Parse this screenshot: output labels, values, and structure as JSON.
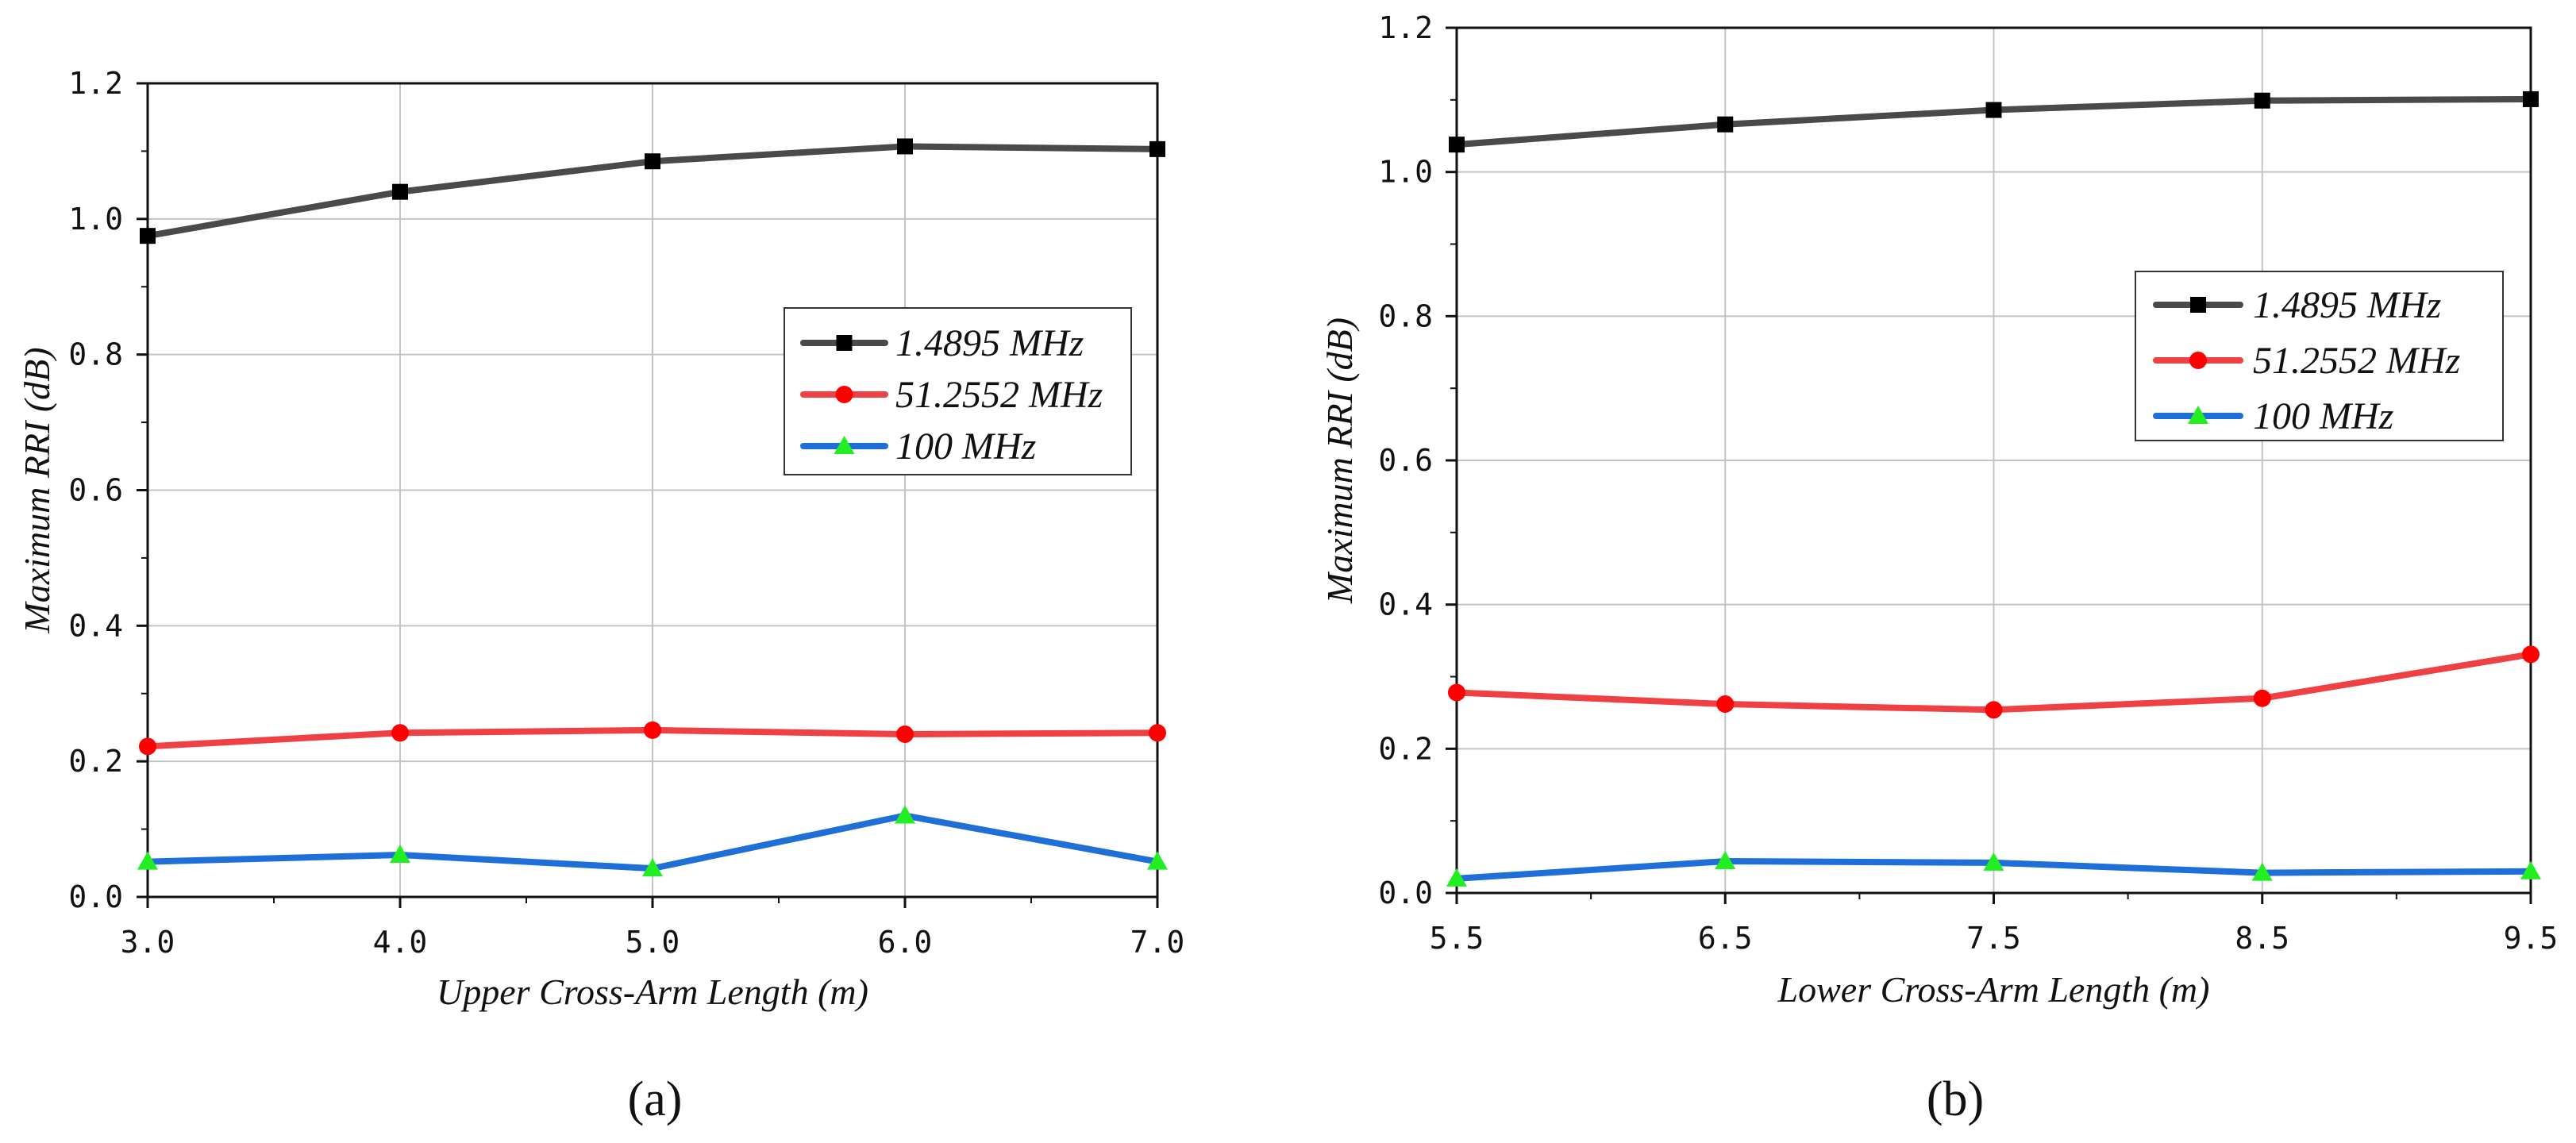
{
  "chart_data": [
    {
      "type": "line",
      "panel_label": "(a)",
      "title": "",
      "xlabel": "Upper Cross-Arm Length (m)",
      "ylabel": "Maximum RRI (dB)",
      "xlim": [
        3.0,
        7.0
      ],
      "ylim": [
        0.0,
        1.2
      ],
      "xticks": [
        3.0,
        4.0,
        5.0,
        6.0,
        7.0
      ],
      "xtick_labels": [
        "3.0",
        "4.0",
        "5.0",
        "6.0",
        "7.0"
      ],
      "yticks": [
        0.0,
        0.2,
        0.4,
        0.6,
        0.8,
        1.0,
        1.2
      ],
      "ytick_labels": [
        "0.0",
        "0.2",
        "0.4",
        "0.6",
        "0.8",
        "1.0",
        "1.2"
      ],
      "grid": true,
      "legend_position": "center-right",
      "x": [
        3.0,
        4.0,
        5.0,
        6.0,
        7.0
      ],
      "series": [
        {
          "name": "1.4895 MHz",
          "values": [
            0.975,
            1.04,
            1.085,
            1.107,
            1.103
          ],
          "color": "#4a4a4a",
          "marker": "square",
          "marker_color": "#000000"
        },
        {
          "name": "51.2552 MHz",
          "values": [
            0.222,
            0.242,
            0.246,
            0.24,
            0.242
          ],
          "color": "#ef4043",
          "marker": "circle",
          "marker_color": "#ff0000"
        },
        {
          "name": "100 MHz",
          "values": [
            0.052,
            0.062,
            0.042,
            0.12,
            0.052
          ],
          "color": "#1f6fd8",
          "marker": "triangle",
          "marker_color": "#22ee22"
        }
      ]
    },
    {
      "type": "line",
      "panel_label": "(b)",
      "title": "",
      "xlabel": "Lower Cross-Arm Length (m)",
      "ylabel": "Maximum RRI (dB)",
      "xlim": [
        5.5,
        9.5
      ],
      "ylim": [
        0.0,
        1.2
      ],
      "xticks": [
        5.5,
        6.5,
        7.5,
        8.5,
        9.5
      ],
      "xtick_labels": [
        "5.5",
        "6.5",
        "7.5",
        "8.5",
        "9.5"
      ],
      "yticks": [
        0.0,
        0.2,
        0.4,
        0.6,
        0.8,
        1.0,
        1.2
      ],
      "ytick_labels": [
        "0.0",
        "0.2",
        "0.4",
        "0.6",
        "0.8",
        "1.0",
        "1.2"
      ],
      "grid": true,
      "legend_position": "upper-right",
      "x": [
        5.5,
        6.5,
        7.5,
        8.5,
        9.5
      ],
      "series": [
        {
          "name": "1.4895 MHz",
          "values": [
            1.038,
            1.066,
            1.086,
            1.099,
            1.101
          ],
          "color": "#4a4a4a",
          "marker": "square",
          "marker_color": "#000000"
        },
        {
          "name": "51.2552 MHz",
          "values": [
            0.278,
            0.262,
            0.254,
            0.27,
            0.331
          ],
          "color": "#ef4043",
          "marker": "circle",
          "marker_color": "#ff0000"
        },
        {
          "name": "100 MHz",
          "values": [
            0.02,
            0.044,
            0.042,
            0.028,
            0.03
          ],
          "color": "#1f6fd8",
          "marker": "triangle",
          "marker_color": "#22ee22"
        }
      ]
    }
  ]
}
